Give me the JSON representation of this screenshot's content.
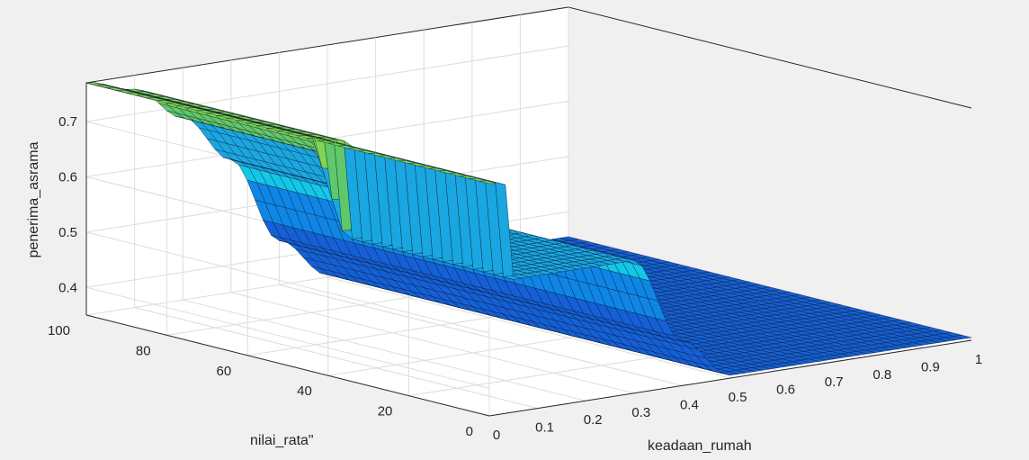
{
  "chart_data": {
    "type": "surface",
    "title": "",
    "xlabel": "keadaan_rumah",
    "ylabel": "nilai_rata\"",
    "zlabel": "penerima_asrama",
    "xlim": [
      0,
      1
    ],
    "ylim": [
      0,
      100
    ],
    "zlim": [
      0.35,
      0.77
    ],
    "x_ticks": [
      "0",
      "0.1",
      "0.2",
      "0.3",
      "0.4",
      "0.5",
      "0.6",
      "0.7",
      "0.8",
      "0.9",
      "1"
    ],
    "y_ticks": [
      "0",
      "20",
      "40",
      "60",
      "80",
      "100"
    ],
    "z_ticks": [
      "0.4",
      "0.5",
      "0.6",
      "0.7"
    ],
    "grid": true,
    "colormap": "parula",
    "profile_x": [
      0,
      0.1,
      0.2,
      0.3,
      0.4,
      0.5,
      0.6,
      0.7,
      0.8,
      0.9,
      1.0
    ],
    "profile_z": [
      0.77,
      0.745,
      0.68,
      0.59,
      0.43,
      0.355,
      0.355,
      0.355,
      0.355,
      0.355,
      0.355
    ],
    "low_y_step": {
      "y_below": 50,
      "z": 0.59,
      "x_from": 0.04,
      "x_to": 0.3
    }
  }
}
